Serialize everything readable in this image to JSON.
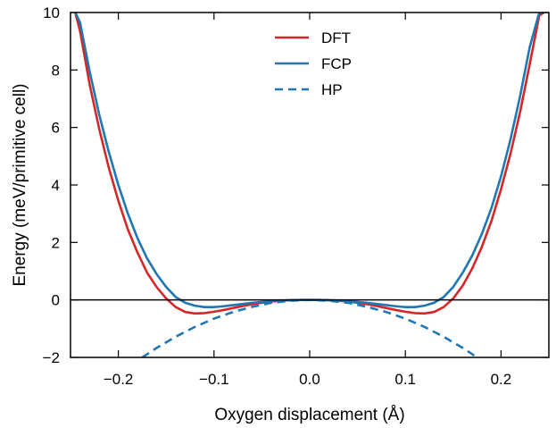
{
  "chart_data": {
    "type": "line",
    "xlabel": "Oxygen displacement (Å)",
    "ylabel": "Energy (meV/primitive cell)",
    "xlim": [
      -0.25,
      0.25
    ],
    "ylim": [
      -2,
      10
    ],
    "xticks": [
      -0.2,
      -0.1,
      0.0,
      0.1,
      0.2
    ],
    "xtick_labels": [
      "−0.2",
      "−0.1",
      "0.0",
      "0.1",
      "0.2"
    ],
    "yticks": [
      -2,
      0,
      2,
      4,
      6,
      8,
      10
    ],
    "ytick_labels": [
      "−2",
      "0",
      "2",
      "4",
      "6",
      "8",
      "10"
    ],
    "grid": false,
    "legend_position": "top-center",
    "zero_line": true,
    "series": [
      {
        "name": "DFT",
        "color": "#d62728",
        "style": "solid",
        "x": [
          -0.245,
          -0.24,
          -0.23,
          -0.22,
          -0.21,
          -0.2,
          -0.19,
          -0.18,
          -0.17,
          -0.16,
          -0.15,
          -0.14,
          -0.13,
          -0.12,
          -0.11,
          -0.1,
          -0.09,
          -0.08,
          -0.07,
          -0.06,
          -0.05,
          -0.04,
          -0.03,
          -0.02,
          -0.01,
          0.0,
          0.01,
          0.02,
          0.03,
          0.04,
          0.05,
          0.06,
          0.07,
          0.08,
          0.09,
          0.1,
          0.11,
          0.12,
          0.13,
          0.14,
          0.15,
          0.16,
          0.17,
          0.18,
          0.19,
          0.2,
          0.21,
          0.22,
          0.23,
          0.24,
          0.245
        ],
        "y": [
          10.0,
          9.35,
          7.5,
          5.95,
          4.6,
          3.45,
          2.45,
          1.65,
          0.95,
          0.45,
          0.05,
          -0.25,
          -0.42,
          -0.47,
          -0.46,
          -0.41,
          -0.35,
          -0.28,
          -0.21,
          -0.15,
          -0.1,
          -0.06,
          -0.03,
          -0.01,
          0.0,
          0.0,
          0.0,
          -0.01,
          -0.03,
          -0.06,
          -0.1,
          -0.15,
          -0.21,
          -0.28,
          -0.35,
          -0.41,
          -0.46,
          -0.47,
          -0.42,
          -0.25,
          0.05,
          0.5,
          1.1,
          1.85,
          2.75,
          3.85,
          5.1,
          6.55,
          8.2,
          9.9,
          10.0
        ]
      },
      {
        "name": "FCP",
        "color": "#1f77b4",
        "style": "solid",
        "x": [
          -0.245,
          -0.24,
          -0.23,
          -0.22,
          -0.21,
          -0.2,
          -0.19,
          -0.18,
          -0.17,
          -0.16,
          -0.15,
          -0.14,
          -0.13,
          -0.12,
          -0.11,
          -0.1,
          -0.09,
          -0.08,
          -0.07,
          -0.06,
          -0.05,
          -0.04,
          -0.03,
          -0.02,
          -0.01,
          0.0,
          0.01,
          0.02,
          0.03,
          0.04,
          0.05,
          0.06,
          0.07,
          0.08,
          0.09,
          0.1,
          0.11,
          0.12,
          0.13,
          0.14,
          0.15,
          0.16,
          0.17,
          0.18,
          0.19,
          0.2,
          0.21,
          0.22,
          0.23,
          0.24,
          0.245
        ],
        "y": [
          10.0,
          9.65,
          7.95,
          6.45,
          5.15,
          4.0,
          3.0,
          2.15,
          1.45,
          0.9,
          0.45,
          0.1,
          -0.1,
          -0.2,
          -0.25,
          -0.25,
          -0.22,
          -0.18,
          -0.14,
          -0.1,
          -0.07,
          -0.04,
          -0.02,
          -0.01,
          0.0,
          0.0,
          0.0,
          -0.01,
          -0.02,
          -0.04,
          -0.07,
          -0.1,
          -0.14,
          -0.18,
          -0.22,
          -0.25,
          -0.25,
          -0.2,
          -0.1,
          0.1,
          0.45,
          0.95,
          1.55,
          2.3,
          3.2,
          4.3,
          5.6,
          7.1,
          8.8,
          10.0,
          10.0
        ]
      },
      {
        "name": "HP",
        "color": "#1f77b4",
        "style": "dashed",
        "x": [
          -0.175,
          -0.16,
          -0.14,
          -0.12,
          -0.1,
          -0.08,
          -0.06,
          -0.04,
          -0.02,
          0.0,
          0.02,
          0.04,
          0.06,
          0.08,
          0.1,
          0.12,
          0.14,
          0.16,
          0.175
        ],
        "y": [
          -2.0,
          -1.67,
          -1.28,
          -0.94,
          -0.65,
          -0.42,
          -0.24,
          -0.1,
          -0.03,
          0.0,
          -0.03,
          -0.1,
          -0.24,
          -0.42,
          -0.65,
          -0.94,
          -1.28,
          -1.67,
          -2.0
        ]
      }
    ]
  }
}
